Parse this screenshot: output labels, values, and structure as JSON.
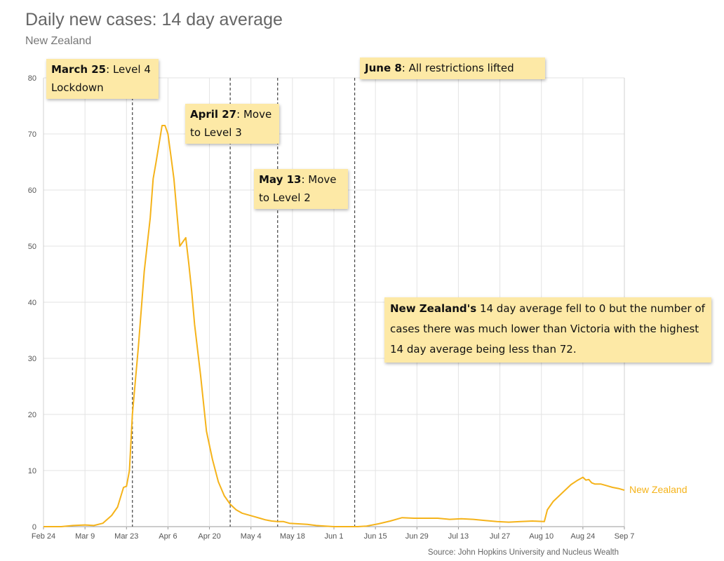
{
  "chart_data": {
    "type": "line",
    "title": "Daily new cases: 14 day average",
    "subtitle": "New Zealand",
    "source": "Source: John Hopkins University and Nucleus Wealth",
    "xlabel": "",
    "ylabel": "",
    "x_ticks": [
      "Feb 24",
      "Mar 9",
      "Mar 23",
      "Apr 6",
      "Apr 20",
      "May 4",
      "May 18",
      "Jun 1",
      "Jun 15",
      "Jun 29",
      "Jul 13",
      "Jul 27",
      "Aug 10",
      "Aug 24",
      "Sep 7"
    ],
    "y_ticks": [
      "0",
      "10",
      "20",
      "30",
      "40",
      "50",
      "60",
      "70",
      "80"
    ],
    "ylim": [
      0,
      80
    ],
    "xlim": [
      "2020-02-24",
      "2020-09-07"
    ],
    "grid": true,
    "line_color": "#f5b31a",
    "series": [
      {
        "name": "New Zealand",
        "x": [
          "2020-02-24",
          "2020-03-01",
          "2020-03-05",
          "2020-03-09",
          "2020-03-12",
          "2020-03-15",
          "2020-03-18",
          "2020-03-20",
          "2020-03-22",
          "2020-03-23",
          "2020-03-24",
          "2020-03-25",
          "2020-03-27",
          "2020-03-29",
          "2020-03-31",
          "2020-04-01",
          "2020-04-02",
          "2020-04-04",
          "2020-04-05",
          "2020-04-06",
          "2020-04-07",
          "2020-04-08",
          "2020-04-10",
          "2020-04-12",
          "2020-04-13",
          "2020-04-14",
          "2020-04-15",
          "2020-04-17",
          "2020-04-19",
          "2020-04-21",
          "2020-04-23",
          "2020-04-25",
          "2020-04-27",
          "2020-04-29",
          "2020-05-01",
          "2020-05-03",
          "2020-05-05",
          "2020-05-07",
          "2020-05-09",
          "2020-05-11",
          "2020-05-13",
          "2020-05-15",
          "2020-05-17",
          "2020-05-20",
          "2020-05-23",
          "2020-05-26",
          "2020-05-29",
          "2020-06-01",
          "2020-06-05",
          "2020-06-09",
          "2020-06-12",
          "2020-06-16",
          "2020-06-20",
          "2020-06-24",
          "2020-06-28",
          "2020-07-02",
          "2020-07-06",
          "2020-07-10",
          "2020-07-14",
          "2020-07-18",
          "2020-07-22",
          "2020-07-26",
          "2020-07-30",
          "2020-08-03",
          "2020-08-07",
          "2020-08-11",
          "2020-08-12",
          "2020-08-14",
          "2020-08-16",
          "2020-08-18",
          "2020-08-20",
          "2020-08-22",
          "2020-08-24",
          "2020-08-25",
          "2020-08-26",
          "2020-08-27",
          "2020-08-28",
          "2020-08-30",
          "2020-09-01",
          "2020-09-03",
          "2020-09-05",
          "2020-09-07"
        ],
        "values": [
          0,
          0,
          0.2,
          0.3,
          0.2,
          0.6,
          2,
          3.5,
          7,
          7.2,
          10,
          20,
          32,
          45.5,
          55,
          62,
          65,
          71.5,
          71.5,
          70,
          66,
          62,
          50,
          51.5,
          47,
          42,
          36,
          27,
          17,
          12,
          8,
          5.5,
          4,
          3,
          2.4,
          2.1,
          1.8,
          1.5,
          1.2,
          1,
          0.9,
          0.9,
          0.6,
          0.5,
          0.4,
          0.2,
          0.1,
          0,
          0,
          0,
          0.1,
          0.5,
          1,
          1.6,
          1.5,
          1.5,
          1.5,
          1.3,
          1.4,
          1.3,
          1.1,
          0.9,
          0.8,
          0.9,
          1,
          0.9,
          3,
          4.5,
          5.5,
          6.5,
          7.5,
          8.2,
          8.8,
          8.3,
          8.4,
          7.8,
          7.6,
          7.6,
          7.3,
          7,
          6.8,
          6.5
        ]
      }
    ],
    "annotations": [
      {
        "date": "2020-03-25",
        "bold": "March 25",
        "text": " Level 4 Lockdown"
      },
      {
        "date": "2020-04-27",
        "bold": "April 27",
        "text": " Move to Level 3"
      },
      {
        "date": "2020-05-13",
        "bold": "May 13",
        "text": " Move to Level 2"
      },
      {
        "date": "2020-06-08",
        "bold": "June 8",
        "text": " All restrictions lifted"
      },
      {
        "bold": "New Zealand's",
        "text": " 14 day average fell to 0 but the number of cases there was much lower than Victoria with the highest 14 day average being less than 72."
      }
    ],
    "series_label": "New Zealand"
  }
}
